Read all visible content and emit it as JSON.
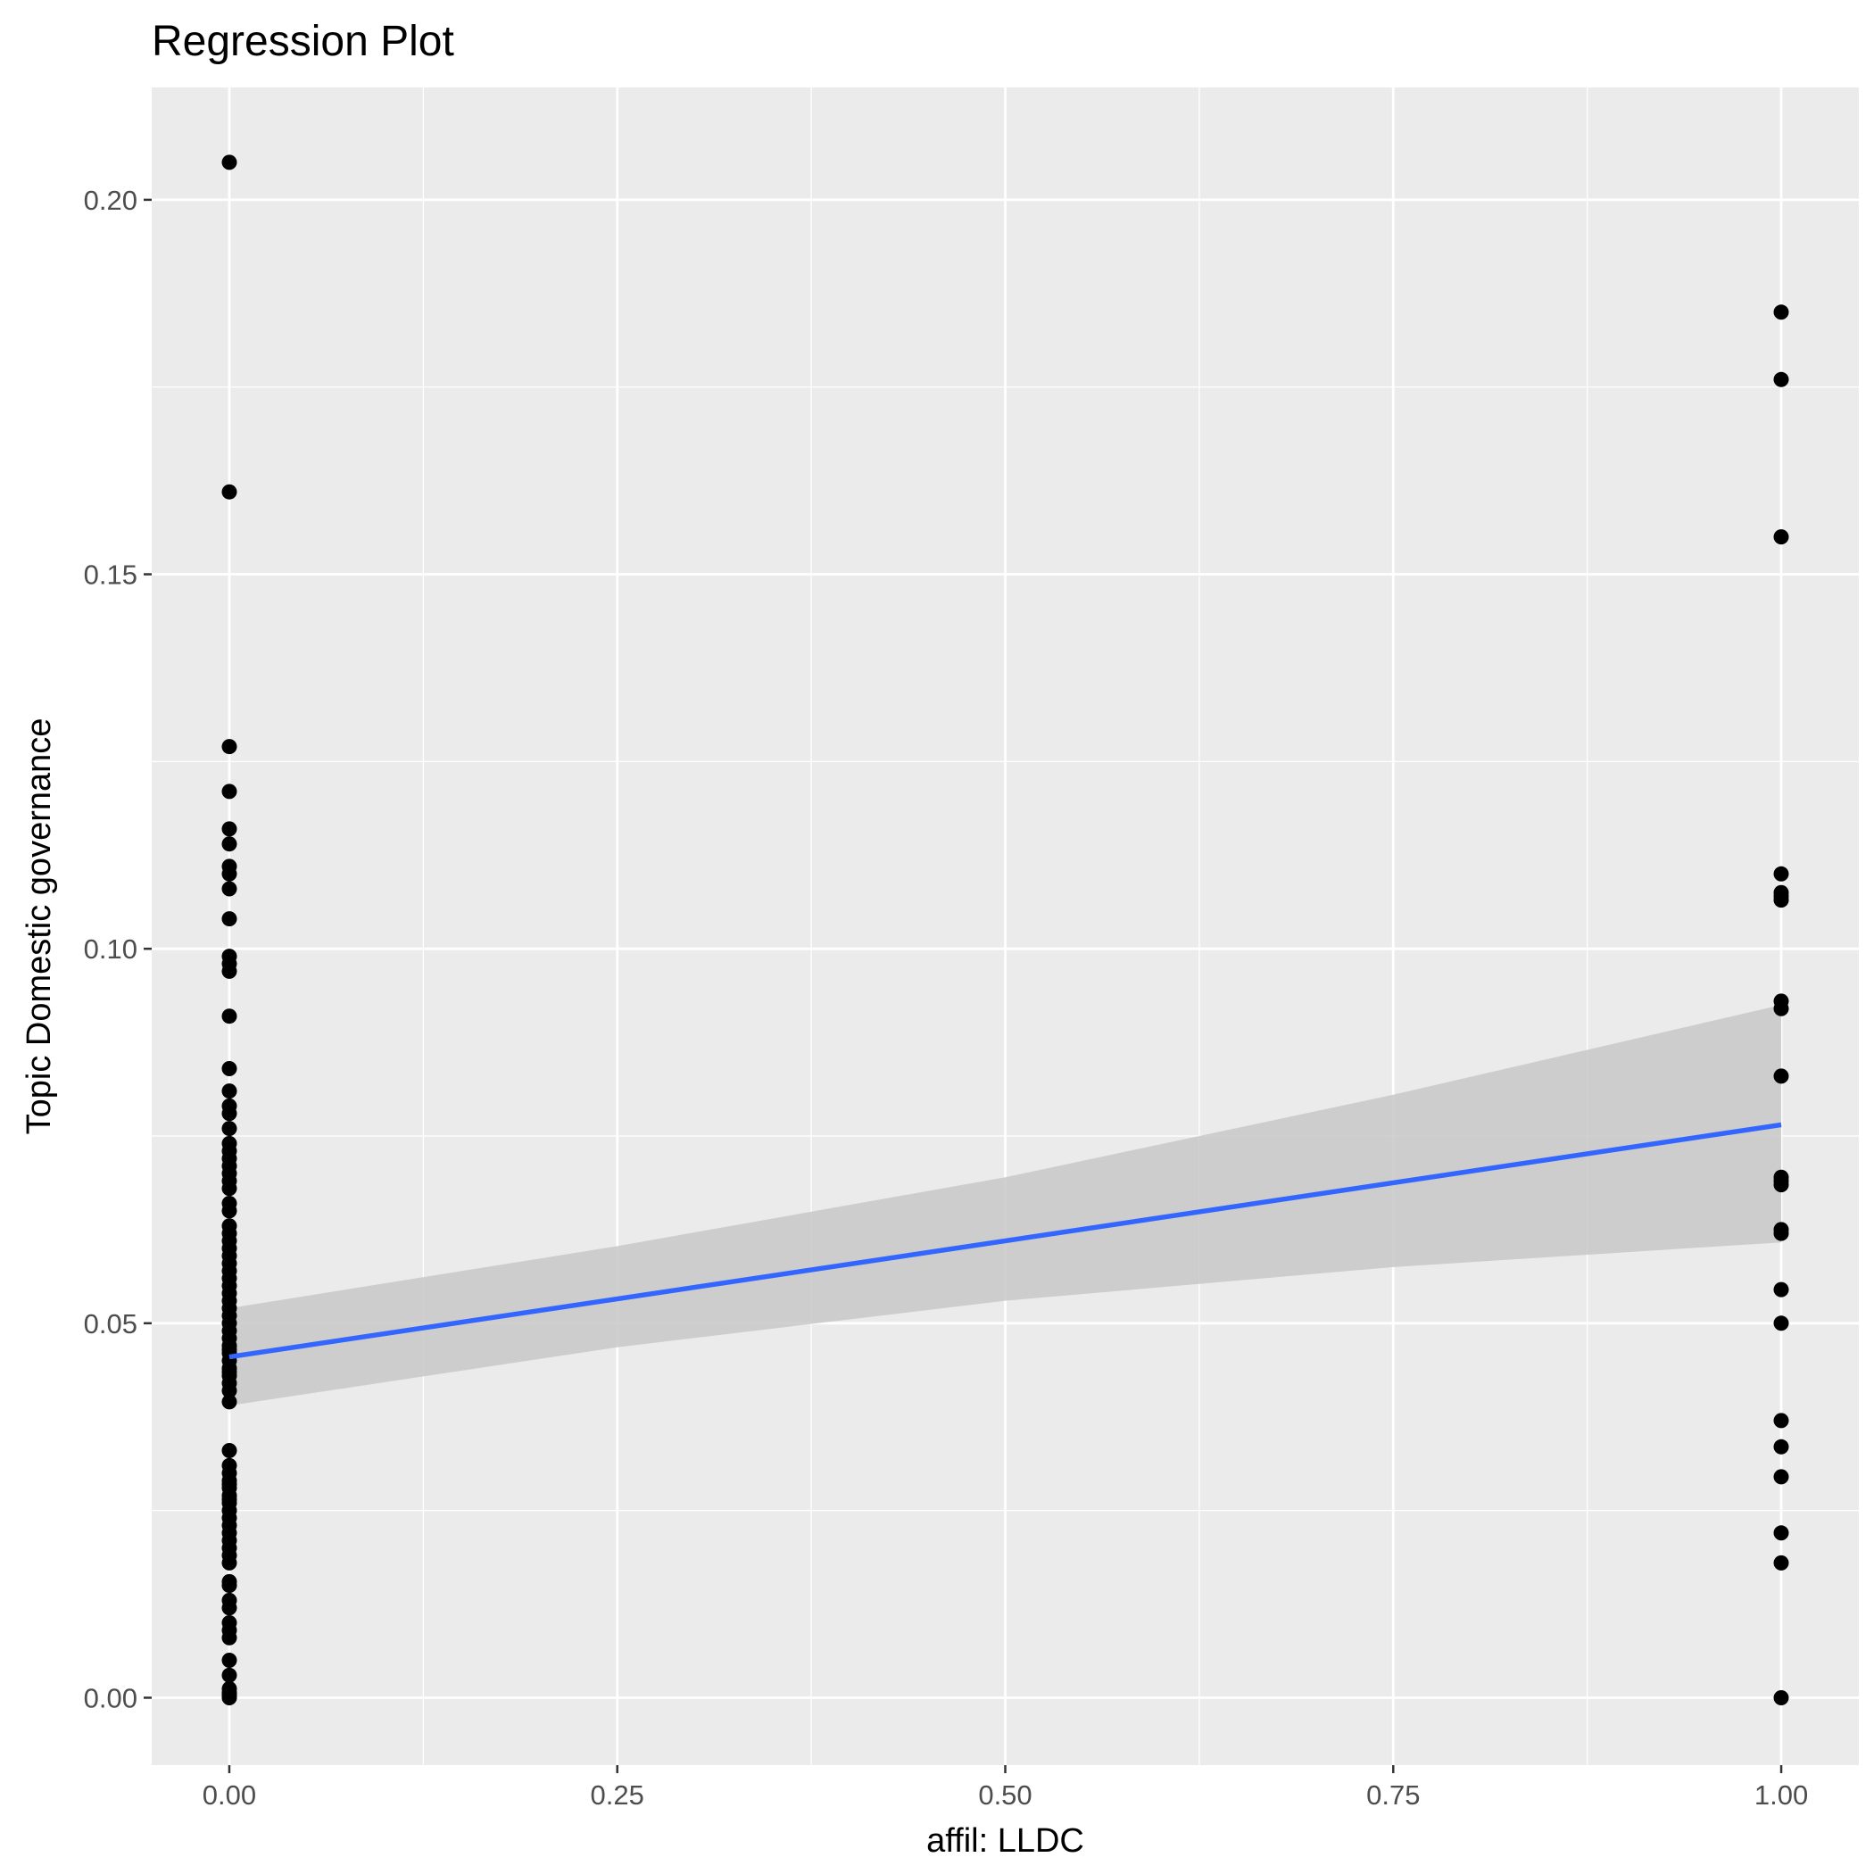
{
  "chart_data": {
    "type": "scatter",
    "title": "Regression Plot",
    "xlabel": "affil: LLDC",
    "ylabel": "Topic Domestic governance",
    "xlim": [
      -0.05,
      1.05
    ],
    "ylim": [
      -0.009,
      0.215
    ],
    "x_ticks": [
      0,
      0.25,
      0.5,
      0.75,
      1
    ],
    "x_tick_labels": [
      "0.00",
      "0.25",
      "0.50",
      "0.75",
      "1.00"
    ],
    "y_ticks": [
      0,
      0.05,
      0.1,
      0.15,
      0.2
    ],
    "y_tick_labels": [
      "0.00",
      "0.05",
      "0.10",
      "0.15",
      "0.20"
    ],
    "grid": true,
    "colors": {
      "panel": "#ebebeb",
      "grid": "#ffffff",
      "points": "#000000",
      "fit_line": "#3366ff",
      "ribbon": "#c8c8c8"
    },
    "series": [
      {
        "x": [
          0,
          0,
          0,
          0,
          0,
          0,
          0,
          0,
          0,
          0,
          0,
          0,
          0,
          0,
          0,
          0,
          0,
          0,
          0,
          0,
          0,
          0,
          0,
          0,
          0,
          0,
          0,
          0,
          0,
          0,
          0,
          0,
          0,
          0,
          0,
          0,
          0,
          0,
          0,
          0,
          0,
          0,
          0,
          0,
          0,
          0,
          0,
          0,
          0,
          0,
          0,
          0,
          0,
          0,
          0,
          0,
          0,
          0,
          0,
          0,
          0,
          0,
          0,
          0,
          0,
          0,
          0,
          0,
          0,
          0,
          0,
          0,
          0,
          0,
          0,
          0,
          0,
          0,
          0,
          0,
          0,
          0,
          0,
          0,
          0
        ],
        "y": [
          0.205,
          0.161,
          0.127,
          0.121,
          0.116,
          0.114,
          0.111,
          0.11,
          0.108,
          0.104,
          0.099,
          0.098,
          0.097,
          0.091,
          0.084,
          0.081,
          0.079,
          0.078,
          0.076,
          0.074,
          0.073,
          0.072,
          0.071,
          0.07,
          0.069,
          0.068,
          0.066,
          0.065,
          0.063,
          0.062,
          0.061,
          0.06,
          0.059,
          0.058,
          0.057,
          0.056,
          0.055,
          0.054,
          0.053,
          0.052,
          0.051,
          0.05,
          0.049,
          0.048,
          0.047,
          0.046,
          0.045,
          0.044,
          0.043,
          0.042,
          0.041,
          0.0395,
          0.033,
          0.031,
          0.03,
          0.029,
          0.028,
          0.027,
          0.026,
          0.025,
          0.024,
          0.023,
          0.021,
          0.02,
          0.019,
          0.018,
          0.0155,
          0.015,
          0.012,
          0.01,
          0.009,
          0.008,
          0.005,
          0.003,
          0.0005,
          0.0,
          0.0003,
          0.0007,
          0.0012,
          0.013,
          0.022,
          0.0265,
          0.0285,
          0.0435,
          0.0465
        ]
      },
      {
        "x": [
          1,
          1,
          1,
          1,
          1,
          1,
          1,
          1,
          1,
          1,
          1,
          1,
          1,
          1,
          1,
          1,
          1,
          1,
          1,
          1,
          1,
          1,
          1
        ],
        "y": [
          0.185,
          0.176,
          0.155,
          0.11,
          0.1075,
          0.107,
          0.1065,
          0.093,
          0.092,
          0.083,
          0.0695,
          0.069,
          0.0685,
          0.0625,
          0.062,
          0.0545,
          0.05,
          0.037,
          0.0335,
          0.0295,
          0.022,
          0.018,
          0.0
        ]
      }
    ],
    "regression": {
      "x": [
        0,
        1
      ],
      "y": [
        0.0455,
        0.0765
      ]
    },
    "confidence_band": {
      "x": [
        0,
        0.25,
        0.5,
        0.75,
        1
      ],
      "lower": [
        0.039,
        0.0468,
        0.053,
        0.0575,
        0.0608
      ],
      "upper": [
        0.052,
        0.0603,
        0.0695,
        0.0805,
        0.0925
      ]
    }
  }
}
